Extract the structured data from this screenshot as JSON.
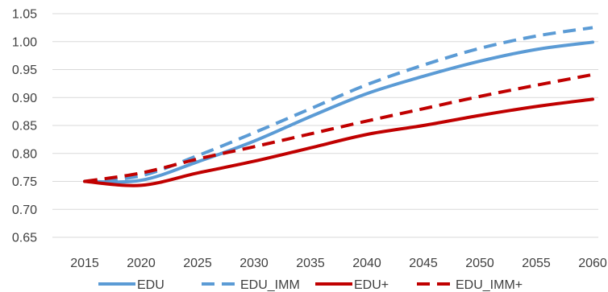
{
  "chart_data": {
    "type": "line",
    "title": "",
    "xlabel": "",
    "ylabel": "",
    "x": [
      2015,
      2020,
      2025,
      2030,
      2035,
      2040,
      2045,
      2050,
      2055,
      2060
    ],
    "xticks": [
      "2015",
      "2020",
      "2025",
      "2030",
      "2035",
      "2040",
      "2045",
      "2050",
      "2055",
      "2060"
    ],
    "yticks": [
      "0.65",
      "0.70",
      "0.75",
      "0.80",
      "0.85",
      "0.90",
      "0.95",
      "1.00",
      "1.05"
    ],
    "ylim": [
      0.65,
      1.05
    ],
    "grid": "horizontal",
    "legend_position": "bottom",
    "series": [
      {
        "name": "EDU",
        "color": "#5b9bd5",
        "dash": "solid",
        "values": [
          0.75,
          0.752,
          0.785,
          0.822,
          0.866,
          0.907,
          0.938,
          0.965,
          0.986,
          0.999
        ]
      },
      {
        "name": "EDU_IMM",
        "color": "#5b9bd5",
        "dash": "dashed",
        "values": [
          0.75,
          0.76,
          0.796,
          0.837,
          0.88,
          0.923,
          0.958,
          0.988,
          1.01,
          1.025
        ]
      },
      {
        "name": "EDU+",
        "color": "#c00000",
        "dash": "solid",
        "values": [
          0.75,
          0.743,
          0.765,
          0.786,
          0.81,
          0.834,
          0.85,
          0.868,
          0.884,
          0.897
        ]
      },
      {
        "name": "EDU_IMM+",
        "color": "#c00000",
        "dash": "dashed",
        "values": [
          0.75,
          0.765,
          0.79,
          0.812,
          0.835,
          0.858,
          0.88,
          0.902,
          0.922,
          0.941
        ]
      }
    ]
  }
}
